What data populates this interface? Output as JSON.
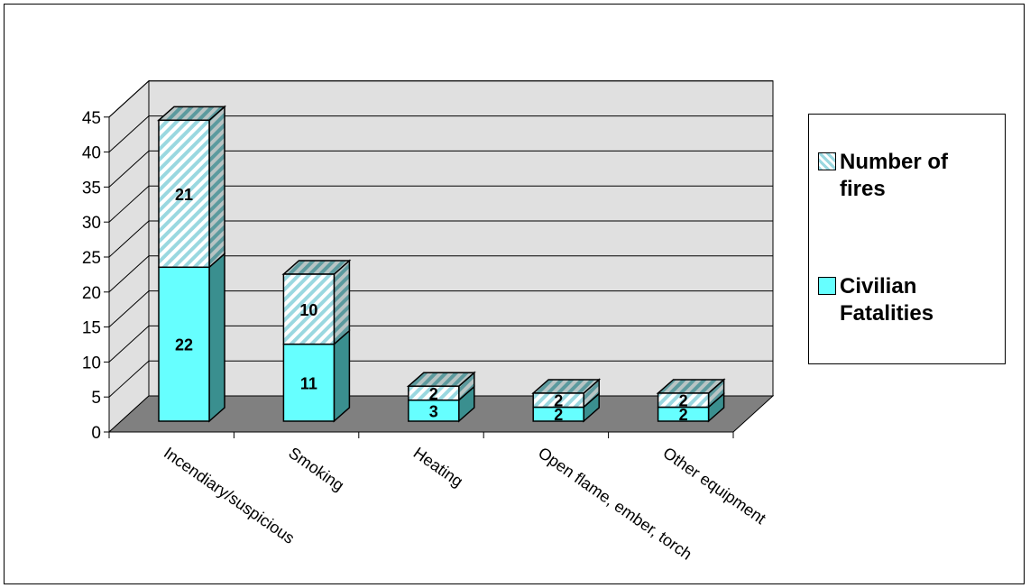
{
  "chart_data": {
    "type": "bar",
    "stacked": true,
    "three_d": true,
    "categories": [
      "Incendiary/suspicious",
      "Smoking",
      "Heating",
      "Open flame, ember, torch",
      "Other equipment"
    ],
    "series": [
      {
        "name": "Civilian Fatalities",
        "values": [
          22,
          11,
          3,
          2,
          2
        ],
        "color": "#66ffff",
        "pattern": "solid"
      },
      {
        "name": "Number of fires",
        "values": [
          21,
          10,
          2,
          2,
          2
        ],
        "color": "#9ad8e0",
        "pattern": "diagonal-hatch"
      }
    ],
    "data_labels": [
      [
        "22",
        "11",
        "3",
        "2",
        "2"
      ],
      [
        "21",
        "10",
        "2",
        "2",
        "2"
      ]
    ],
    "ylim": [
      0,
      45
    ],
    "yticks": [
      "0",
      "5",
      "10",
      "15",
      "20",
      "25",
      "30",
      "35",
      "40",
      "45"
    ],
    "grid": true,
    "legend_position": "right",
    "title": "",
    "xlabel": "",
    "ylabel": "",
    "colors": {
      "wall": "#e0e0e0",
      "floor": "#808080",
      "side_dark": "#3a8f8f"
    }
  },
  "legend": {
    "items": [
      {
        "label": "Number of fires",
        "pattern": "diagonal-hatch"
      },
      {
        "label": "Civilian Fatalities",
        "pattern": "solid"
      }
    ]
  }
}
